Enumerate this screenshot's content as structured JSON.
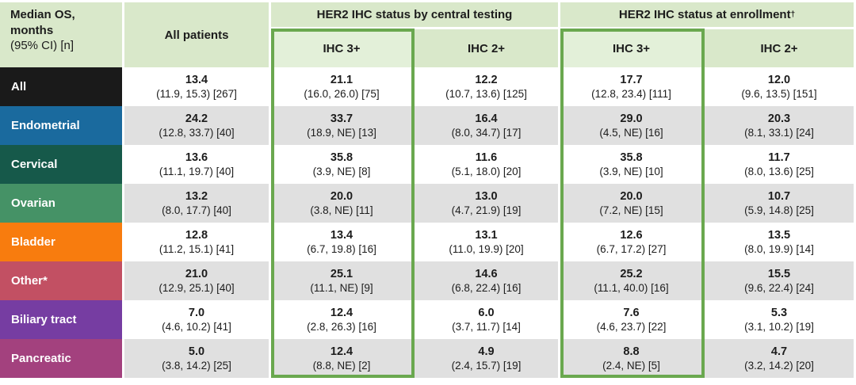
{
  "colors": {
    "header_bg": "#d9e8ca",
    "highlight_header_bg": "#e3f0d9",
    "highlight_border": "#6aa84f",
    "row_alt_bg": "#e0e0e0",
    "row_bg": "#ffffff"
  },
  "chart_data": {
    "type": "table",
    "corner_header": {
      "line1": "Median OS,",
      "line2": "months",
      "line3": "(95% CI) [n]"
    },
    "all_patients_header": "All patients",
    "column_groups": [
      {
        "label": "HER2 IHC status by central testing",
        "superscript": ""
      },
      {
        "label": "HER2 IHC status at enrollment",
        "superscript": "†"
      }
    ],
    "subheaders": [
      "IHC 3+",
      "IHC 2+",
      "IHC 3+",
      "IHC 2+"
    ],
    "highlighted_columns": [
      "IHC 3+",
      "IHC 3+"
    ],
    "rows": [
      {
        "label": "All",
        "color": "#1a1a1a",
        "cells": [
          {
            "value": "13.4",
            "detail": "(11.9, 15.3) [267]"
          },
          {
            "value": "21.1",
            "detail": "(16.0, 26.0) [75]"
          },
          {
            "value": "12.2",
            "detail": "(10.7, 13.6) [125]"
          },
          {
            "value": "17.7",
            "detail": "(12.8, 23.4) [111]"
          },
          {
            "value": "12.0",
            "detail": "(9.6, 13.5) [151]"
          }
        ]
      },
      {
        "label": "Endometrial",
        "color": "#1a6a9e",
        "cells": [
          {
            "value": "24.2",
            "detail": "(12.8, 33.7) [40]"
          },
          {
            "value": "33.7",
            "detail": "(18.9, NE) [13]"
          },
          {
            "value": "16.4",
            "detail": "(8.0, 34.7) [17]"
          },
          {
            "value": "29.0",
            "detail": "(4.5, NE) [16]"
          },
          {
            "value": "20.3",
            "detail": "(8.1, 33.1) [24]"
          }
        ]
      },
      {
        "label": "Cervical",
        "color": "#16594a",
        "cells": [
          {
            "value": "13.6",
            "detail": "(11.1, 19.7) [40]"
          },
          {
            "value": "35.8",
            "detail": "(3.9, NE) [8]"
          },
          {
            "value": "11.6",
            "detail": "(5.1, 18.0) [20]"
          },
          {
            "value": "35.8",
            "detail": "(3.9, NE) [10]"
          },
          {
            "value": "11.7",
            "detail": "(8.0, 13.6) [25]"
          }
        ]
      },
      {
        "label": "Ovarian",
        "color": "#459266",
        "cells": [
          {
            "value": "13.2",
            "detail": "(8.0, 17.7) [40]"
          },
          {
            "value": "20.0",
            "detail": "(3.8, NE) [11]"
          },
          {
            "value": "13.0",
            "detail": "(4.7, 21.9) [19]"
          },
          {
            "value": "20.0",
            "detail": "(7.2, NE) [15]"
          },
          {
            "value": "10.7",
            "detail": "(5.9, 14.8) [25]"
          }
        ]
      },
      {
        "label": "Bladder",
        "color": "#f87c0e",
        "cells": [
          {
            "value": "12.8",
            "detail": "(11.2, 15.1) [41]"
          },
          {
            "value": "13.4",
            "detail": "(6.7, 19.8) [16]"
          },
          {
            "value": "13.1",
            "detail": "(11.0, 19.9) [20]"
          },
          {
            "value": "12.6",
            "detail": "(6.7, 17.2) [27]"
          },
          {
            "value": "13.5",
            "detail": "(8.0, 19.9) [14]"
          }
        ]
      },
      {
        "label": "Other*",
        "color": "#c25063",
        "cells": [
          {
            "value": "21.0",
            "detail": "(12.9, 25.1) [40]"
          },
          {
            "value": "25.1",
            "detail": "(11.1, NE) [9]"
          },
          {
            "value": "14.6",
            "detail": "(6.8, 22.4) [16]"
          },
          {
            "value": "25.2",
            "detail": "(11.1, 40.0) [16]"
          },
          {
            "value": "15.5",
            "detail": "(9.6, 22.4) [24]"
          }
        ]
      },
      {
        "label": "Biliary tract",
        "color": "#763da2",
        "cells": [
          {
            "value": "7.0",
            "detail": "(4.6, 10.2) [41]"
          },
          {
            "value": "12.4",
            "detail": "(2.8, 26.3) [16]"
          },
          {
            "value": "6.0",
            "detail": "(3.7, 11.7) [14]"
          },
          {
            "value": "7.6",
            "detail": "(4.6, 23.7) [22]"
          },
          {
            "value": "5.3",
            "detail": "(3.1, 10.2) [19]"
          }
        ]
      },
      {
        "label": "Pancreatic",
        "color": "#a3417e",
        "cells": [
          {
            "value": "5.0",
            "detail": "(3.8, 14.2) [25]"
          },
          {
            "value": "12.4",
            "detail": "(8.8, NE) [2]"
          },
          {
            "value": "4.9",
            "detail": "(2.4, 15.7) [19]"
          },
          {
            "value": "8.8",
            "detail": "(2.4, NE) [5]"
          },
          {
            "value": "4.7",
            "detail": "(3.2, 14.2) [20]"
          }
        ]
      }
    ]
  }
}
